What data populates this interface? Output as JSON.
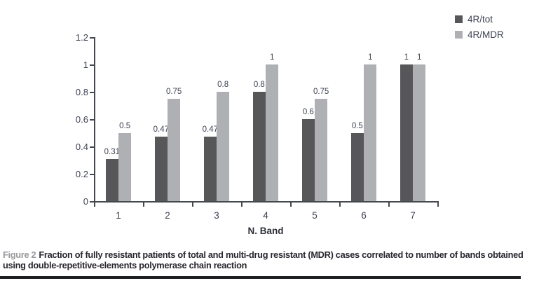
{
  "figure": {
    "caption_label": "Figure 2",
    "caption_text": "Fraction of fully resistant patients of total and multi-drug resistant (MDR) cases correlated to number of bands obtained using double-repetitive-elements polymerase chain reaction"
  },
  "chart_data": {
    "type": "bar",
    "title": "",
    "categories": [
      "1",
      "2",
      "3",
      "4",
      "5",
      "6",
      "7"
    ],
    "series": [
      {
        "name": "4R/tot",
        "color": "#575659",
        "values": [
          0.31,
          0.47,
          0.47,
          0.8,
          0.6,
          0.5,
          1
        ]
      },
      {
        "name": "4R/MDR",
        "color": "#aeb0b4",
        "values": [
          0.5,
          0.75,
          0.8,
          1,
          0.75,
          1,
          1
        ]
      }
    ],
    "xlabel": "N. Band",
    "ylabel": "",
    "ylim": [
      0,
      1.2
    ],
    "yticks": [
      "0",
      "0.2",
      "0.4",
      "0.6",
      "0.8",
      "1",
      "1.2"
    ],
    "grid": false,
    "legend_position": "top-right",
    "value_labels": true
  },
  "colors": {
    "background": "#ffffff",
    "axis": "#45484f",
    "tick_text": "#3d4252",
    "value_label_text": "#3d4252",
    "caption_label": "#97999c",
    "caption_text": "#2a262e",
    "rule": "#1e1f23"
  }
}
